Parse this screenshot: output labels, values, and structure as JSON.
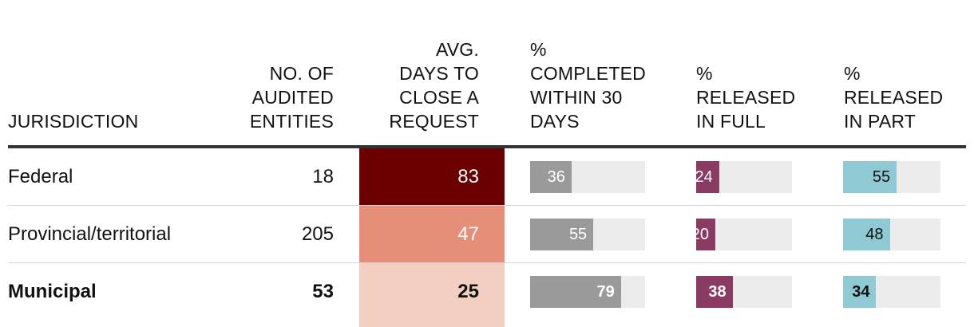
{
  "columns": {
    "jurisdiction": "JURISDICTION",
    "entities": [
      "NO. OF",
      "AUDITED",
      "ENTITIES"
    ],
    "avg_days": [
      "AVG.",
      "DAYS TO",
      "CLOSE A",
      "REQUEST"
    ],
    "completed": [
      "%",
      "COMPLETED",
      "WITHIN 30",
      "DAYS"
    ],
    "released_full": [
      "%",
      "RELEASED",
      "IN FULL"
    ],
    "released_part": [
      "%",
      "RELEASED",
      "IN PART"
    ]
  },
  "colors": {
    "completed": "#9a9a9a",
    "released_full": "#8b3a62",
    "released_part": "#8ec9d4",
    "track": "#ebebeb",
    "heat_high": "#6b0000",
    "heat_mid": "#e58f78",
    "heat_low": "#f3cfc2"
  },
  "chart_data": {
    "type": "table",
    "rows": [
      {
        "jurisdiction": "Federal",
        "entities": "18",
        "avg_days": "83",
        "completed": "36",
        "released_full": "24",
        "released_part": "55",
        "bold": false
      },
      {
        "jurisdiction": "Provincial/territorial",
        "entities": "205",
        "avg_days": "47",
        "completed": "55",
        "released_full": "20",
        "released_part": "48",
        "bold": false
      },
      {
        "jurisdiction": "Municipal",
        "entities": "53",
        "avg_days": "25",
        "completed": "79",
        "released_full": "38",
        "released_part": "34",
        "bold": true
      }
    ],
    "bar_scale_max": 100
  }
}
